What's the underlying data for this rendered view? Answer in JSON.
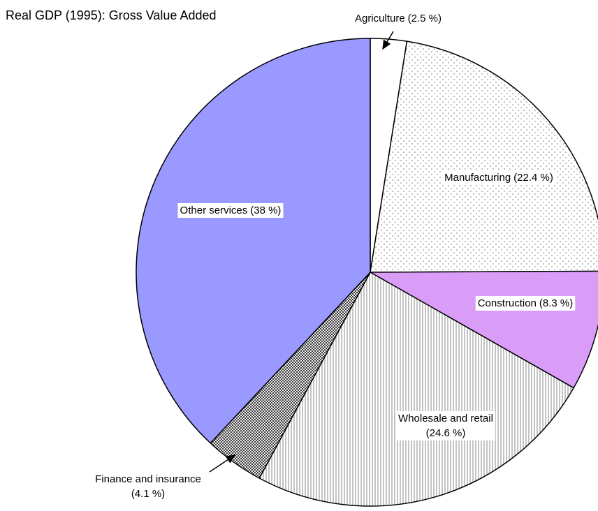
{
  "chart_data": {
    "type": "pie",
    "title": "Real GDP (1995): Gross Value Added",
    "categories": [
      "Agriculture",
      "Manufacturing",
      "Construction",
      "Wholesale and retail",
      "Finance and insurance",
      "Other services"
    ],
    "values": [
      2.5,
      22.4,
      8.3,
      24.6,
      4.1,
      38
    ],
    "value_labels": [
      "(2.5 %)",
      "(22.4 %)",
      "(8.3 %)",
      "(24.6 %)",
      "(4.1 %)",
      "(38 %)"
    ],
    "colors": [
      "#ffffff",
      "#ffffff",
      "#d99cf7",
      "#ffffff",
      "#ffffff",
      "#9999ff"
    ],
    "patterns": [
      "none",
      "dots",
      "none",
      "vertical-lines",
      "dense-dots",
      "none"
    ]
  }
}
